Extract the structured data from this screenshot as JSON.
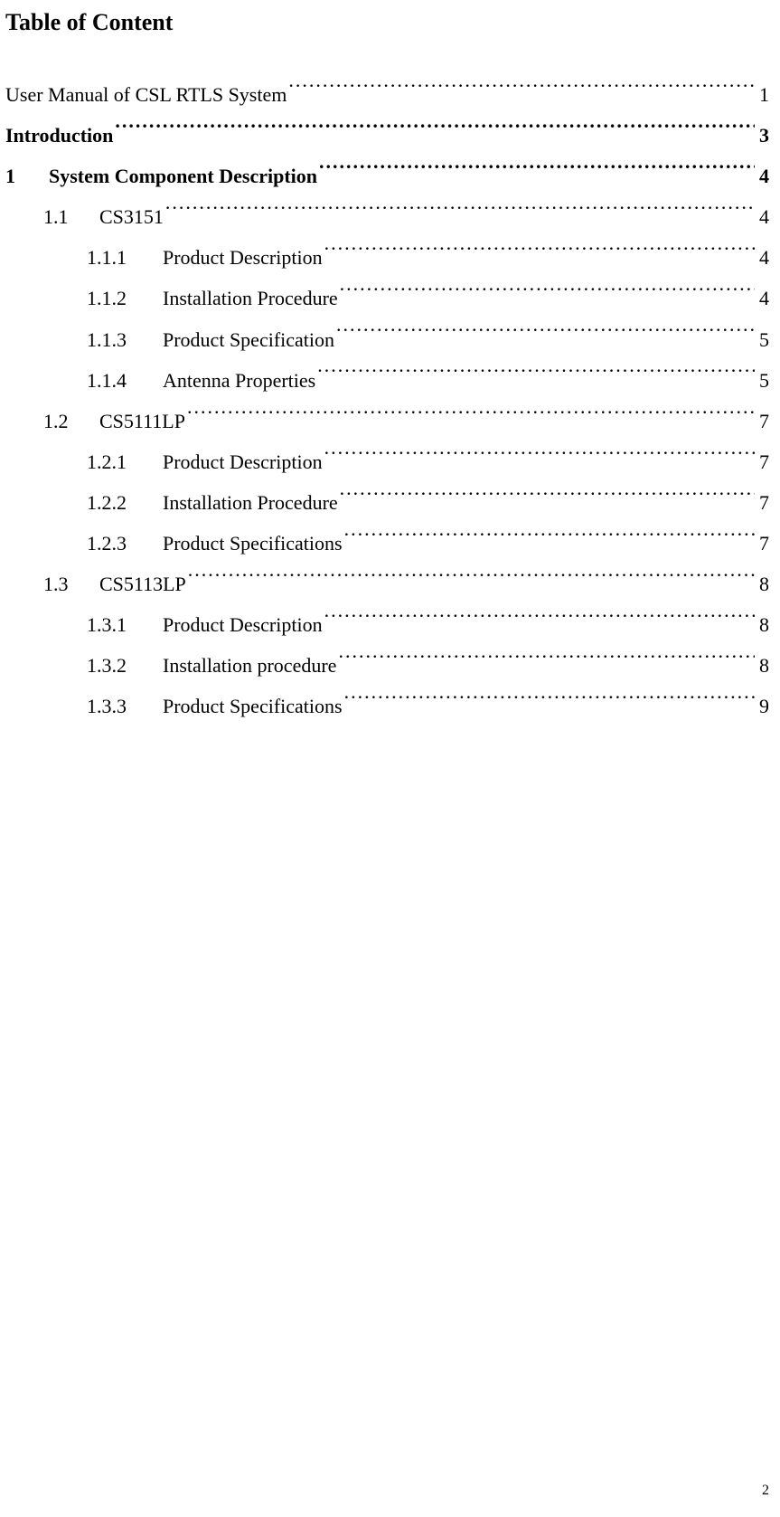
{
  "title": "Table of Content",
  "entries": [
    {
      "indent": 0,
      "num": "",
      "label": "User Manual of CSL RTLS System",
      "page": "1",
      "bold": false,
      "numw": ""
    },
    {
      "indent": 0,
      "num": "",
      "label": "Introduction",
      "page": "3",
      "bold": true,
      "numw": ""
    },
    {
      "indent": 1,
      "num": "1",
      "label": "System Component Description",
      "page": "4",
      "bold": true,
      "numw": "num-w1"
    },
    {
      "indent": 2,
      "num": "1.1",
      "label": "CS3151",
      "page": "4",
      "bold": false,
      "numw": "num-w2"
    },
    {
      "indent": 3,
      "num": "1.1.1",
      "label": "Product Description",
      "page": "4",
      "bold": false,
      "numw": "num-w3"
    },
    {
      "indent": 3,
      "num": "1.1.2",
      "label": "Installation Procedure",
      "page": "4",
      "bold": false,
      "numw": "num-w3"
    },
    {
      "indent": 3,
      "num": "1.1.3",
      "label": "Product Specification",
      "page": "5",
      "bold": false,
      "numw": "num-w3"
    },
    {
      "indent": 3,
      "num": "1.1.4",
      "label": "Antenna Properties",
      "page": "5",
      "bold": false,
      "numw": "num-w3"
    },
    {
      "indent": 2,
      "num": "1.2",
      "label": "CS5111LP",
      "page": "7",
      "bold": false,
      "numw": "num-w2"
    },
    {
      "indent": 3,
      "num": "1.2.1",
      "label": "Product Description",
      "page": "7",
      "bold": false,
      "numw": "num-w3"
    },
    {
      "indent": 3,
      "num": "1.2.2",
      "label": "Installation Procedure",
      "page": "7",
      "bold": false,
      "numw": "num-w3"
    },
    {
      "indent": 3,
      "num": "1.2.3",
      "label": "Product Specifications",
      "page": "7",
      "bold": false,
      "numw": "num-w3"
    },
    {
      "indent": 2,
      "num": "1.3",
      "label": "CS5113LP",
      "page": "8",
      "bold": false,
      "numw": "num-w2"
    },
    {
      "indent": 3,
      "num": "1.3.1",
      "label": "Product Description",
      "page": "8",
      "bold": false,
      "numw": "num-w3"
    },
    {
      "indent": 3,
      "num": "1.3.2",
      "label": "Installation procedure",
      "page": "8",
      "bold": false,
      "numw": "num-w3"
    },
    {
      "indent": 3,
      "num": "1.3.3",
      "label": "Product Specifications",
      "page": "9",
      "bold": false,
      "numw": "num-w3"
    }
  ],
  "footer_page": "2"
}
